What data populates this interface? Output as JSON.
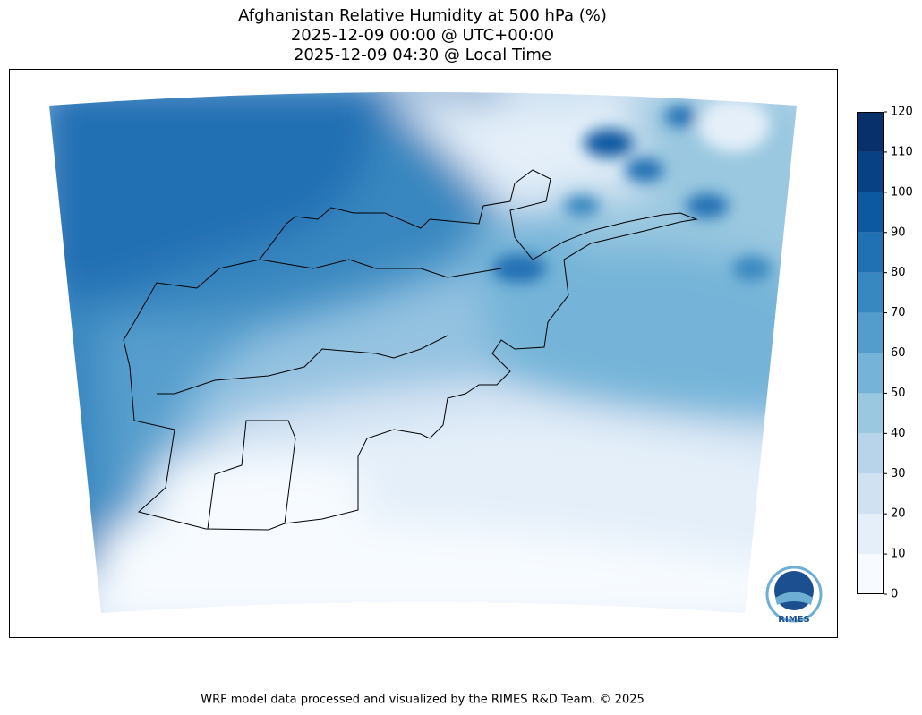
{
  "title": [
    "Afghanistan Relative Humidity at 500 hPa (%)",
    "2025-12-09 00:00 @ UTC+00:00",
    "2025-12-09 04:30 @ Local Time"
  ],
  "colorbar": {
    "ticks": [
      0,
      10,
      20,
      30,
      40,
      50,
      60,
      70,
      80,
      90,
      100,
      110,
      120
    ],
    "colors": [
      "#f7fbff",
      "#e4eff9",
      "#d0e1f2",
      "#b7d4ea",
      "#9ac8e0",
      "#75b4d8",
      "#529dcc",
      "#3787c0",
      "#2070b4",
      "#0d59a1",
      "#084285",
      "#08306b"
    ]
  },
  "logo": "RIMES",
  "footer": "WRF model data processed and visualized by the RIMES R&D Team. © 2025"
}
